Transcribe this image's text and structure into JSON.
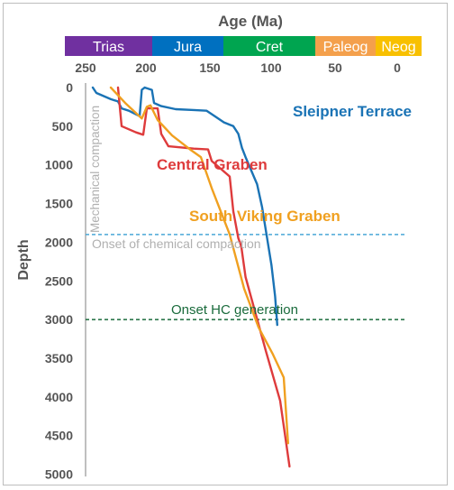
{
  "chart_data": {
    "type": "line",
    "title": "Age (Ma)",
    "ylabel": "Depth",
    "xlim": [
      250,
      0
    ],
    "ylim": [
      0,
      5000
    ],
    "x_ticks": [
      250,
      200,
      150,
      100,
      50,
      0
    ],
    "y_ticks": [
      0,
      500,
      1000,
      1500,
      2000,
      2500,
      3000,
      3500,
      4000,
      4500,
      5000
    ],
    "periods": [
      {
        "name": "Trias",
        "start": 252,
        "end": 201,
        "color": "#7030a0"
      },
      {
        "name": "Jura",
        "start": 201,
        "end": 145,
        "color": "#0070c0"
      },
      {
        "name": "Cret",
        "start": 145,
        "end": 66,
        "color": "#00a550"
      },
      {
        "name": "Paleog",
        "start": 66,
        "end": 23,
        "color": "#f4a04c"
      },
      {
        "name": "Neog",
        "start": 23,
        "end": 0,
        "color": "#f8c000"
      }
    ],
    "series": [
      {
        "name": "Sleipner Terrace",
        "color": "#1a73b5",
        "points": [
          [
            240,
            0
          ],
          [
            235,
            70
          ],
          [
            215,
            150
          ],
          [
            205,
            180
          ],
          [
            200,
            270
          ],
          [
            190,
            300
          ],
          [
            175,
            370
          ],
          [
            172,
            30
          ],
          [
            168,
            0
          ],
          [
            158,
            30
          ],
          [
            155,
            200
          ],
          [
            145,
            240
          ],
          [
            125,
            280
          ],
          [
            100,
            290
          ],
          [
            82,
            300
          ],
          [
            58,
            450
          ],
          [
            45,
            500
          ],
          [
            38,
            600
          ],
          [
            33,
            780
          ],
          [
            28,
            900
          ],
          [
            12,
            1250
          ],
          [
            5,
            1550
          ],
          [
            -8,
            2300
          ],
          [
            -13,
            2700
          ],
          [
            -16,
            3070
          ]
        ]
      },
      {
        "name": "Central Graben",
        "color": "#de3b3c",
        "points": [
          [
            205,
            0
          ],
          [
            200,
            500
          ],
          [
            180,
            580
          ],
          [
            170,
            610
          ],
          [
            165,
            270
          ],
          [
            150,
            270
          ],
          [
            145,
            600
          ],
          [
            135,
            760
          ],
          [
            100,
            790
          ],
          [
            80,
            800
          ],
          [
            75,
            950
          ],
          [
            50,
            1150
          ],
          [
            45,
            1600
          ],
          [
            38,
            1950
          ],
          [
            34,
            2050
          ],
          [
            28,
            2450
          ],
          [
            0,
            3400
          ],
          [
            -20,
            4050
          ],
          [
            -33,
            4900
          ]
        ]
      },
      {
        "name": "South Viking Graben",
        "color": "#f0a020",
        "points": [
          [
            215,
            0
          ],
          [
            195,
            200
          ],
          [
            172,
            400
          ],
          [
            165,
            250
          ],
          [
            160,
            230
          ],
          [
            150,
            420
          ],
          [
            130,
            620
          ],
          [
            105,
            800
          ],
          [
            90,
            900
          ],
          [
            75,
            1300
          ],
          [
            50,
            1900
          ],
          [
            30,
            2600
          ],
          [
            10,
            3100
          ],
          [
            -10,
            3450
          ],
          [
            -25,
            3750
          ],
          [
            -31,
            4600
          ]
        ]
      }
    ],
    "annotations": {
      "vertical": "Mechanical compaction",
      "chemical": "Onset of chemical compaction",
      "hc": "Onset HC generation"
    },
    "reference_lines": [
      {
        "depth": 1900,
        "color": "#4aa8d8"
      },
      {
        "depth": 3000,
        "color": "#1a6b3c"
      }
    ],
    "grid": false
  }
}
